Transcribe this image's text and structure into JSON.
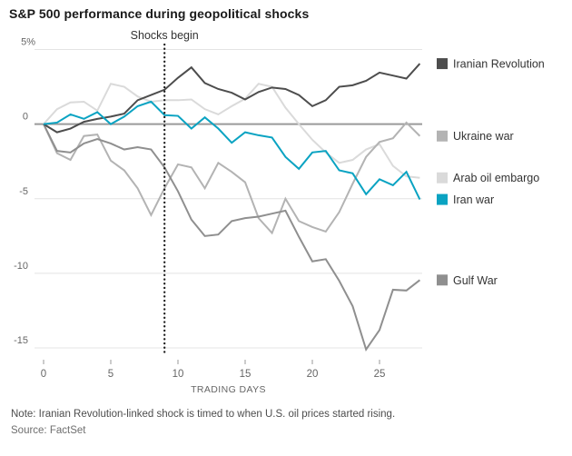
{
  "title": "S&P 500 performance during geopolitical shocks",
  "note": "Note: Iranian Revolution-linked shock is timed to when U.S. oil prices started rising.",
  "source": "Source: FactSet",
  "x_axis": {
    "label": "TRADING DAYS",
    "ticks": [
      0,
      5,
      10,
      15,
      20,
      25
    ]
  },
  "y_axis": {
    "ticks": [
      {
        "label": "5%",
        "value": 5
      },
      {
        "label": "0",
        "value": 0
      },
      {
        "label": "-5",
        "value": -5
      },
      {
        "label": "-10",
        "value": -10
      },
      {
        "label": "-15",
        "value": -15
      }
    ]
  },
  "colors": {
    "gridline": "#e4e4e4",
    "zero_line": "#9a9a9a",
    "shock_line": "#1a1a1a",
    "axis_text": "#666666",
    "legend_text": "#333333",
    "annotation_text": "#333333"
  },
  "chart_data": {
    "type": "line",
    "title": "S&P 500 performance during geopolitical shocks",
    "xlabel": "TRADING DAYS",
    "ylabel": "",
    "xlim": [
      0,
      28.5
    ],
    "ylim": [
      -15.5,
      5.3
    ],
    "grid": "horizontal",
    "legend_position": "right",
    "annotation": {
      "text": "Shocks begin",
      "x_day": 9
    },
    "x": [
      0,
      1,
      2,
      3,
      4,
      5,
      6,
      7,
      8,
      9,
      10,
      11,
      12,
      13,
      14,
      15,
      16,
      17,
      18,
      19,
      20,
      21,
      22,
      23,
      24,
      25,
      26,
      27,
      28
    ],
    "series": [
      {
        "name": "Iranian Revolution",
        "color": "#4d4d4d",
        "values": [
          0,
          -0.55,
          -0.3,
          0.15,
          0.35,
          0.5,
          0.7,
          1.6,
          1.95,
          2.3,
          3.1,
          3.8,
          2.75,
          2.35,
          2.1,
          1.65,
          2.15,
          2.45,
          2.35,
          1.95,
          1.2,
          1.6,
          2.5,
          2.6,
          2.9,
          3.45,
          3.25,
          3.05,
          4.05
        ]
      },
      {
        "name": "Ukraine war",
        "color": "#b3b3b3",
        "values": [
          0,
          -1.95,
          -2.4,
          -0.8,
          -0.7,
          -2.45,
          -3.1,
          -4.3,
          -6.1,
          -4.3,
          -2.7,
          -2.9,
          -4.3,
          -2.6,
          -3.2,
          -3.9,
          -6.3,
          -7.3,
          -5.0,
          -6.5,
          -6.9,
          -7.2,
          -5.9,
          -4.0,
          -2.2,
          -1.2,
          -0.95,
          0.1,
          -0.8
        ]
      },
      {
        "name": "Arab oil embargo",
        "color": "#dadada",
        "values": [
          0,
          1.0,
          1.45,
          1.5,
          0.9,
          2.7,
          2.5,
          1.85,
          1.5,
          1.6,
          1.6,
          1.65,
          1.0,
          0.65,
          1.2,
          1.7,
          2.7,
          2.5,
          1.1,
          0,
          -1.05,
          -1.9,
          -2.6,
          -2.4,
          -1.7,
          -1.35,
          -2.8,
          -3.5,
          -3.6
        ]
      },
      {
        "name": "Iran war",
        "color": "#0aa3c2",
        "values": [
          0,
          0.1,
          0.65,
          0.35,
          0.8,
          0,
          0.5,
          1.2,
          1.5,
          0.6,
          0.55,
          -0.3,
          0.45,
          -0.3,
          -1.25,
          -0.55,
          -0.75,
          -0.9,
          -2.2,
          -3.0,
          -1.9,
          -1.8,
          -3.1,
          -3.3,
          -4.7,
          -3.7,
          -4.1,
          -3.2,
          -5.05
        ]
      },
      {
        "name": "Gulf War",
        "color": "#8f8f8f",
        "values": [
          0,
          -1.8,
          -1.9,
          -1.3,
          -1.0,
          -1.3,
          -1.7,
          -1.55,
          -1.7,
          -2.9,
          -4.5,
          -6.4,
          -7.5,
          -7.4,
          -6.5,
          -6.3,
          -6.2,
          -6.0,
          -5.8,
          -7.55,
          -9.2,
          -9.05,
          -10.5,
          -12.2,
          -15.1,
          -13.8,
          -11.1,
          -11.15,
          -10.45
        ]
      }
    ]
  }
}
